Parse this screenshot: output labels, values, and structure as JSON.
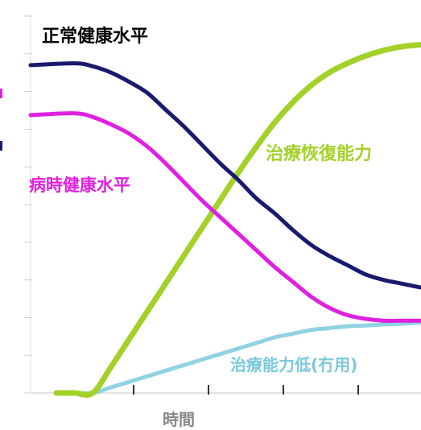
{
  "chart_data": {
    "type": "line",
    "title": "",
    "xlabel": "時間",
    "ylabel": "",
    "xlim": [
      0,
      10
    ],
    "ylim": [
      0,
      10
    ],
    "grid": false,
    "legend": "inline labels",
    "series": [
      {
        "name": "正常健康水平",
        "color": "#1a1a6e",
        "x": [
          0,
          0.5,
          1,
          1.5,
          2,
          2.5,
          3,
          3.5,
          4,
          4.5,
          5,
          5.5,
          6,
          6.5,
          7,
          7.5,
          8,
          8.5,
          9,
          9.5,
          10
        ],
        "values": [
          8.85,
          8.9,
          8.82,
          8.65,
          8.4,
          8.1,
          7.65,
          7.2,
          6.7,
          6.2,
          5.75,
          5.25,
          4.85,
          4.4,
          4.0,
          3.7,
          3.45,
          3.2,
          3.05,
          2.95,
          2.85
        ]
      },
      {
        "name": "病時健康水平",
        "color": "#e020e0",
        "x": [
          0,
          0.5,
          1,
          1.5,
          2,
          2.5,
          3,
          3.5,
          4,
          4.5,
          5,
          5.5,
          6,
          6.5,
          7,
          7.5,
          8,
          8.5,
          9,
          9.5,
          10
        ],
        "values": [
          7.5,
          7.55,
          7.45,
          7.25,
          7.0,
          6.65,
          6.2,
          5.7,
          5.2,
          4.75,
          4.3,
          3.85,
          3.4,
          3.0,
          2.6,
          2.3,
          2.1,
          2.0,
          1.95,
          1.95,
          1.95
        ]
      },
      {
        "name": "治療恢復能力",
        "color": "#a3d12a",
        "x": [
          0,
          0.5,
          1,
          1.5,
          2,
          2.5,
          3,
          3.5,
          4,
          4.5,
          5,
          5.5,
          6,
          6.5,
          7,
          7.5,
          8,
          8.5,
          9,
          9.5,
          10
        ],
        "values": [
          0.0,
          0.0,
          0.0,
          0.7,
          1.45,
          2.2,
          2.95,
          3.7,
          4.45,
          5.2,
          5.95,
          6.65,
          7.3,
          7.85,
          8.3,
          8.65,
          8.9,
          9.1,
          9.25,
          9.35,
          9.4
        ]
      },
      {
        "name": "治療能力低(冇用)",
        "color": "#8fd3e3",
        "x": [
          0,
          0.5,
          1,
          1.5,
          2,
          2.5,
          3,
          3.5,
          4,
          4.5,
          5,
          5.5,
          6,
          6.5,
          7,
          7.5,
          8,
          8.5,
          9,
          9.5,
          10
        ],
        "values": [
          0.0,
          0.0,
          0.0,
          0.15,
          0.3,
          0.45,
          0.6,
          0.75,
          0.9,
          1.05,
          1.2,
          1.35,
          1.5,
          1.6,
          1.7,
          1.75,
          1.8,
          1.82,
          1.85,
          1.87,
          1.9
        ]
      }
    ]
  }
}
